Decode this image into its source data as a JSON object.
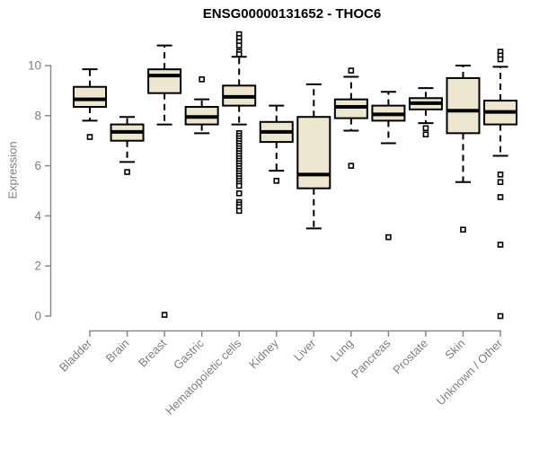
{
  "page": {
    "title": "ENSG00000131652 - THOC6"
  },
  "chart_data": {
    "type": "boxplot",
    "title": "ENSG00000131652 - THOC6",
    "ylabel": "Expression",
    "xlabel": "",
    "ylim": [
      0,
      11.3
    ],
    "y_ticks": [
      0,
      2,
      4,
      6,
      8,
      10
    ],
    "grid": false,
    "legend": false,
    "colors": {
      "box_fill": "#ede7cf",
      "box_stroke": "#000000",
      "axis": "#8a8a8a",
      "tick_label": "#7e7e7e",
      "title": "#000000",
      "background": "#ffffff"
    },
    "categories": [
      "Bladder",
      "Brain",
      "Breast",
      "Gastric",
      "Hematopoietic cells",
      "Kidney",
      "Liver",
      "Lung",
      "Pancreas",
      "Prostate",
      "Skin",
      "Unknown / Other"
    ],
    "series": [
      {
        "name": "Bladder",
        "whisker_low": 7.8,
        "q1": 8.35,
        "median": 8.65,
        "q3": 9.15,
        "whisker_high": 9.85,
        "outliers": [
          7.15
        ]
      },
      {
        "name": "Brain",
        "whisker_low": 6.15,
        "q1": 7.0,
        "median": 7.35,
        "q3": 7.65,
        "whisker_high": 7.95,
        "outliers": [
          5.75
        ]
      },
      {
        "name": "Breast",
        "whisker_low": 7.65,
        "q1": 8.9,
        "median": 9.6,
        "q3": 9.85,
        "whisker_high": 10.8,
        "outliers": [
          0.05
        ]
      },
      {
        "name": "Gastric",
        "whisker_low": 7.3,
        "q1": 7.65,
        "median": 7.95,
        "q3": 8.35,
        "whisker_high": 8.65,
        "outliers": [
          9.45
        ]
      },
      {
        "name": "Hematopoietic cells",
        "whisker_low": 7.65,
        "q1": 8.4,
        "median": 8.75,
        "q3": 9.2,
        "whisker_high": 10.35,
        "outliers": [
          11.25,
          11.1,
          10.95,
          10.8,
          10.55,
          10.45,
          7.3,
          7.2,
          7.1,
          7.0,
          6.9,
          6.8,
          6.7,
          6.6,
          6.5,
          6.4,
          6.3,
          6.2,
          6.1,
          6.0,
          5.9,
          5.8,
          5.7,
          5.6,
          5.5,
          5.4,
          5.3,
          5.2,
          4.9,
          4.55,
          4.45,
          4.35,
          4.2
        ]
      },
      {
        "name": "Kidney",
        "whisker_low": 5.8,
        "q1": 6.95,
        "median": 7.35,
        "q3": 7.75,
        "whisker_high": 8.4,
        "outliers": [
          5.4
        ]
      },
      {
        "name": "Liver",
        "whisker_low": 3.5,
        "q1": 5.1,
        "median": 5.65,
        "q3": 7.95,
        "whisker_high": 9.25,
        "outliers": []
      },
      {
        "name": "Lung",
        "whisker_low": 7.4,
        "q1": 7.9,
        "median": 8.35,
        "q3": 8.65,
        "whisker_high": 9.55,
        "outliers": [
          9.8,
          6.0
        ]
      },
      {
        "name": "Pancreas",
        "whisker_low": 6.9,
        "q1": 7.8,
        "median": 8.05,
        "q3": 8.4,
        "whisker_high": 8.95,
        "outliers": [
          3.15
        ]
      },
      {
        "name": "Prostate",
        "whisker_low": 7.7,
        "q1": 8.25,
        "median": 8.5,
        "q3": 8.7,
        "whisker_high": 9.1,
        "outliers": [
          7.5,
          7.25
        ]
      },
      {
        "name": "Skin",
        "whisker_low": 5.35,
        "q1": 7.3,
        "median": 8.2,
        "q3": 9.5,
        "whisker_high": 10.0,
        "outliers": [
          3.45
        ]
      },
      {
        "name": "Unknown / Other",
        "whisker_low": 6.4,
        "q1": 7.65,
        "median": 8.15,
        "q3": 8.6,
        "whisker_high": 9.95,
        "outliers": [
          10.55,
          10.4,
          10.25,
          5.65,
          5.35,
          4.75,
          2.85,
          0.0
        ]
      }
    ]
  }
}
